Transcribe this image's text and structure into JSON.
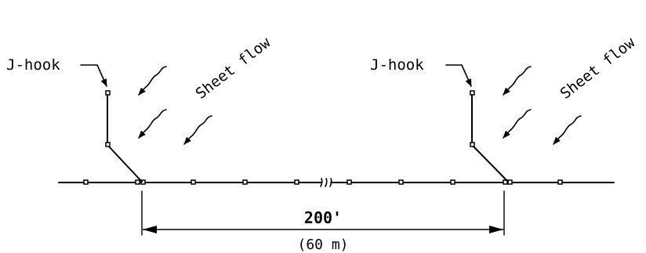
{
  "labels": {
    "left_hook": "J-hook",
    "right_hook": "J-hook",
    "left_flow": "Sheet flow",
    "right_flow": "Sheet flow"
  },
  "dimension": {
    "primary": "200'",
    "secondary": "(60 m)"
  },
  "colors": {
    "line": "#000000",
    "background": "#ffffff"
  }
}
